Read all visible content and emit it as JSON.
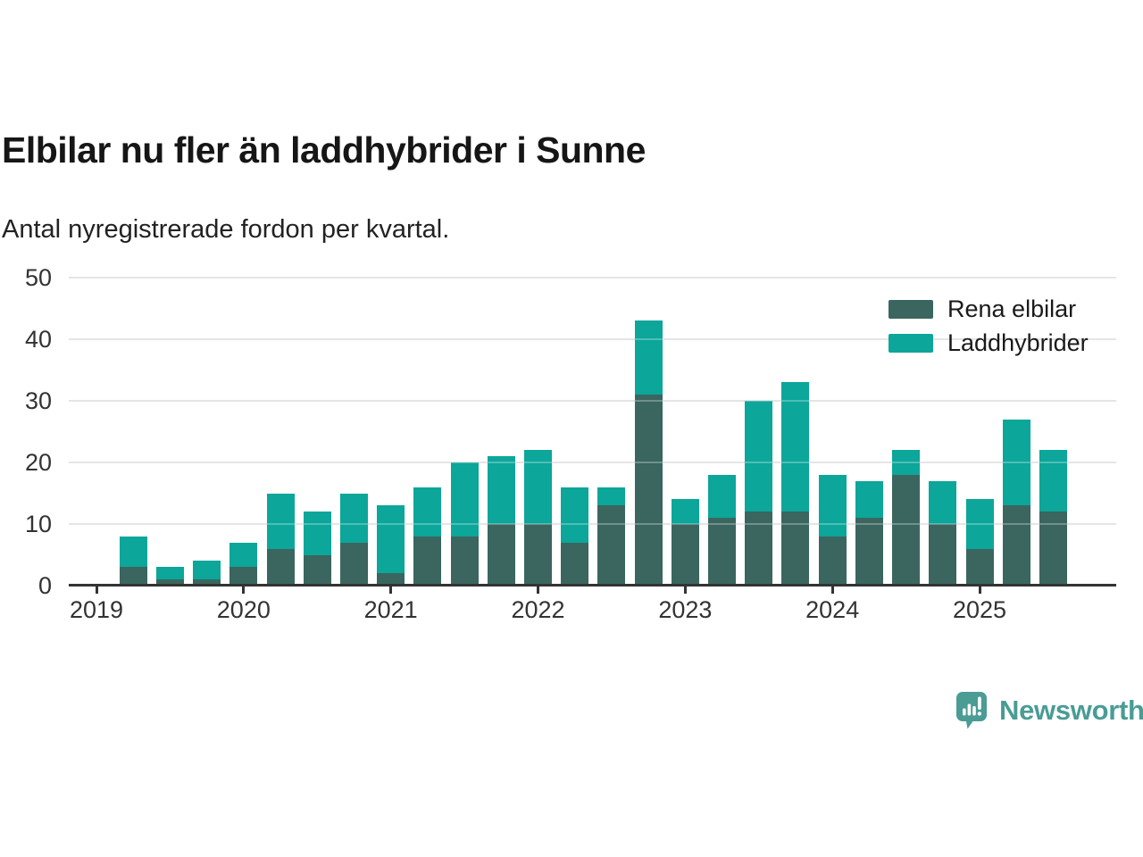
{
  "chart_data": {
    "type": "bar",
    "stacked": true,
    "title": "Elbilar nu fler än laddhybrider i Sunne",
    "subtitle": "Antal nyregistrerade fordon per kvartal.",
    "categories": [
      "2019K1",
      "2019K2",
      "2019K3",
      "2019K4",
      "2020K1",
      "2020K2",
      "2020K3",
      "2020K4",
      "2021K1",
      "2021K2",
      "2021K3",
      "2021K4",
      "2022K1",
      "2022K2",
      "2022K3",
      "2022K4",
      "2023K1",
      "2023K2",
      "2023K3",
      "2023K4",
      "2024K1",
      "2024K2",
      "2024K3",
      "2024K4",
      "2025K1",
      "2025K2",
      "2025K3"
    ],
    "series": [
      {
        "name": "Rena elbilar",
        "color": "#3A665F",
        "values": [
          0,
          3,
          1,
          1,
          3,
          6,
          5,
          7,
          2,
          8,
          8,
          10,
          10,
          7,
          13,
          31,
          10,
          11,
          12,
          12,
          8,
          11,
          18,
          10,
          6,
          13,
          12
        ]
      },
      {
        "name": "Laddhybrider",
        "color": "#0CA69A",
        "values": [
          0,
          5,
          2,
          3,
          4,
          9,
          7,
          8,
          11,
          8,
          12,
          11,
          12,
          9,
          3,
          12,
          4,
          7,
          18,
          21,
          10,
          6,
          4,
          7,
          8,
          14,
          10
        ]
      }
    ],
    "totals": [
      0,
      8,
      3,
      4,
      7,
      15,
      12,
      15,
      13,
      16,
      20,
      21,
      22,
      16,
      16,
      43,
      14,
      18,
      30,
      33,
      18,
      17,
      22,
      17,
      14,
      27,
      22
    ],
    "x_tick_labels": [
      "2019",
      "2020",
      "2021",
      "2022",
      "2023",
      "2024",
      "2025"
    ],
    "x_tick_category_indices": [
      0,
      4,
      8,
      12,
      16,
      20,
      24
    ],
    "y_ticks": [
      0,
      10,
      20,
      30,
      40,
      50
    ],
    "ylim": [
      0,
      50
    ],
    "grid": "horizontal",
    "legend_position": "top-right",
    "axis_color": "#333333",
    "gridline_color": "#dcdcdc"
  },
  "branding": {
    "logo_text": "Newsworthy",
    "logo_color": "#4A9C95",
    "logo_inner_color": "#ffffff"
  }
}
